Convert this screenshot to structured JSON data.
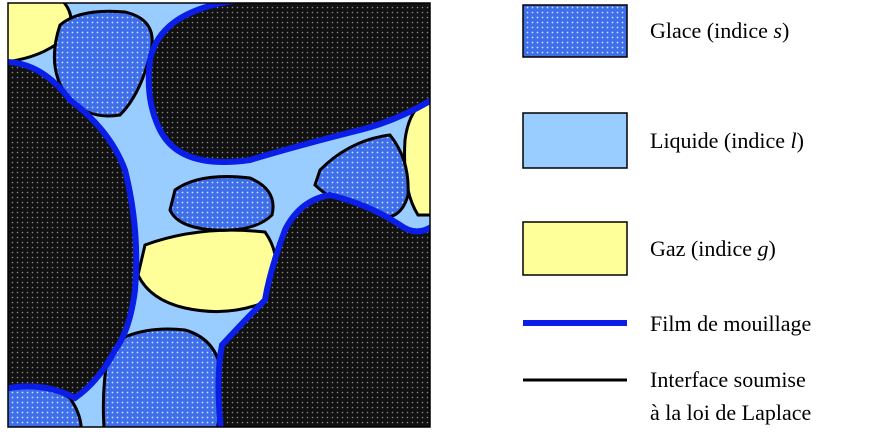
{
  "legend": {
    "items": [
      {
        "before": "Glace (indice ",
        "symbol": "s",
        "after": ")"
      },
      {
        "before": "Liquide (indice ",
        "symbol": "l",
        "after": ")"
      },
      {
        "before": "Gaz (indice ",
        "symbol": "g",
        "after": ")"
      },
      {
        "label": "Film de mouillage"
      },
      {
        "lines": [
          "Interface soumise",
          "à la loi de Laplace"
        ]
      }
    ]
  }
}
